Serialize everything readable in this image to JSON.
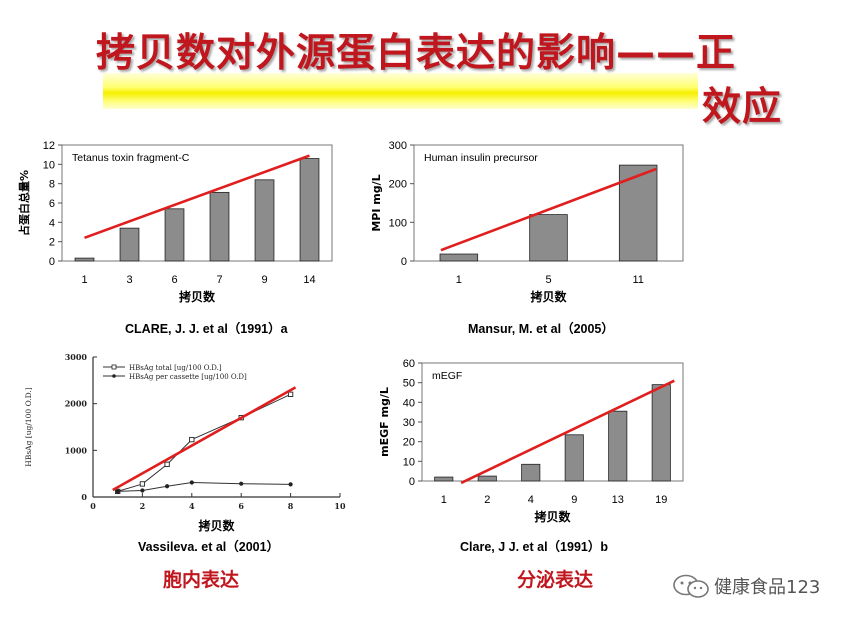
{
  "slide": {
    "title_line1": "拷贝数对外源蛋白表达的影响——正",
    "title_line2": "效应",
    "caption_a": "CLARE, J. J. et al（1991）a",
    "caption_b": "Mansur, M. et al（2005）",
    "caption_c": "Vassileva. et al（2001）",
    "caption_d": "Clare, J J. et al（1991）b",
    "label_intracellular": "胞内表达",
    "label_secretion": "分泌表达",
    "watermark": "健康食品123"
  },
  "colors": {
    "title_red": "#c0161d",
    "bar_gray": "#8c8c8c",
    "trend_red": "#e01e1e",
    "band_yellow": "#ffff66"
  },
  "chart_data": [
    {
      "type": "bar",
      "title": "Tetanus toxin fragment-C",
      "categories": [
        "1",
        "3",
        "6",
        "7",
        "9",
        "14"
      ],
      "values": [
        0.3,
        3.4,
        5.4,
        7.1,
        8.4,
        10.6
      ],
      "xlabel": "拷贝数",
      "ylabel": "占蛋白总量%",
      "ylim": [
        0,
        12
      ],
      "yticks": [
        0,
        2,
        4,
        6,
        8,
        10,
        12
      ],
      "trend": {
        "from": [
          0.5,
          2.4
        ],
        "to": [
          5.5,
          10.9
        ]
      }
    },
    {
      "type": "bar",
      "title": "Human insulin precursor",
      "categories": [
        "1",
        "5",
        "11"
      ],
      "values": [
        18,
        120,
        248
      ],
      "xlabel": "拷贝数",
      "ylabel": "MPI mg/L",
      "ylim": [
        0,
        300
      ],
      "yticks": [
        0,
        100,
        200,
        300
      ],
      "trend": {
        "from": [
          0.3,
          28
        ],
        "to": [
          2.7,
          238
        ]
      }
    },
    {
      "type": "line",
      "legend": [
        "HBsAg total [ug/100 O.D.]",
        "HBsAg per cassette [ug/100 O.D]"
      ],
      "x": [
        1,
        2,
        3,
        4,
        6,
        8
      ],
      "series": [
        {
          "name": "HBsAg total [ug/100 O.D.]",
          "values": [
            120,
            280,
            700,
            1230,
            1700,
            2200
          ]
        },
        {
          "name": "HBsAg per cassette [ug/100 O.D]",
          "values": [
            120,
            140,
            230,
            310,
            285,
            270
          ]
        }
      ],
      "xlabel": "拷贝数",
      "ylabel": "HBsAg [ug/100 O.D.]",
      "xlim": [
        0,
        10
      ],
      "xticks": [
        0,
        2,
        4,
        6,
        8,
        10
      ],
      "ylim": [
        0,
        3000
      ],
      "yticks": [
        0,
        1000,
        2000,
        3000
      ],
      "trend": {
        "from": [
          0.8,
          150
        ],
        "to": [
          8.2,
          2350
        ]
      }
    },
    {
      "type": "bar",
      "title": "mEGF",
      "categories": [
        "1",
        "2",
        "4",
        "9",
        "13",
        "19"
      ],
      "values": [
        2,
        2.5,
        8.5,
        23.5,
        35.5,
        49
      ],
      "xlabel": "拷贝数",
      "ylabel": "mEGF mg/L",
      "ylim": [
        0,
        60
      ],
      "yticks": [
        0,
        10,
        20,
        30,
        40,
        50,
        60
      ],
      "trend": {
        "from": [
          0.9,
          -1
        ],
        "to": [
          5.8,
          51
        ]
      }
    }
  ]
}
